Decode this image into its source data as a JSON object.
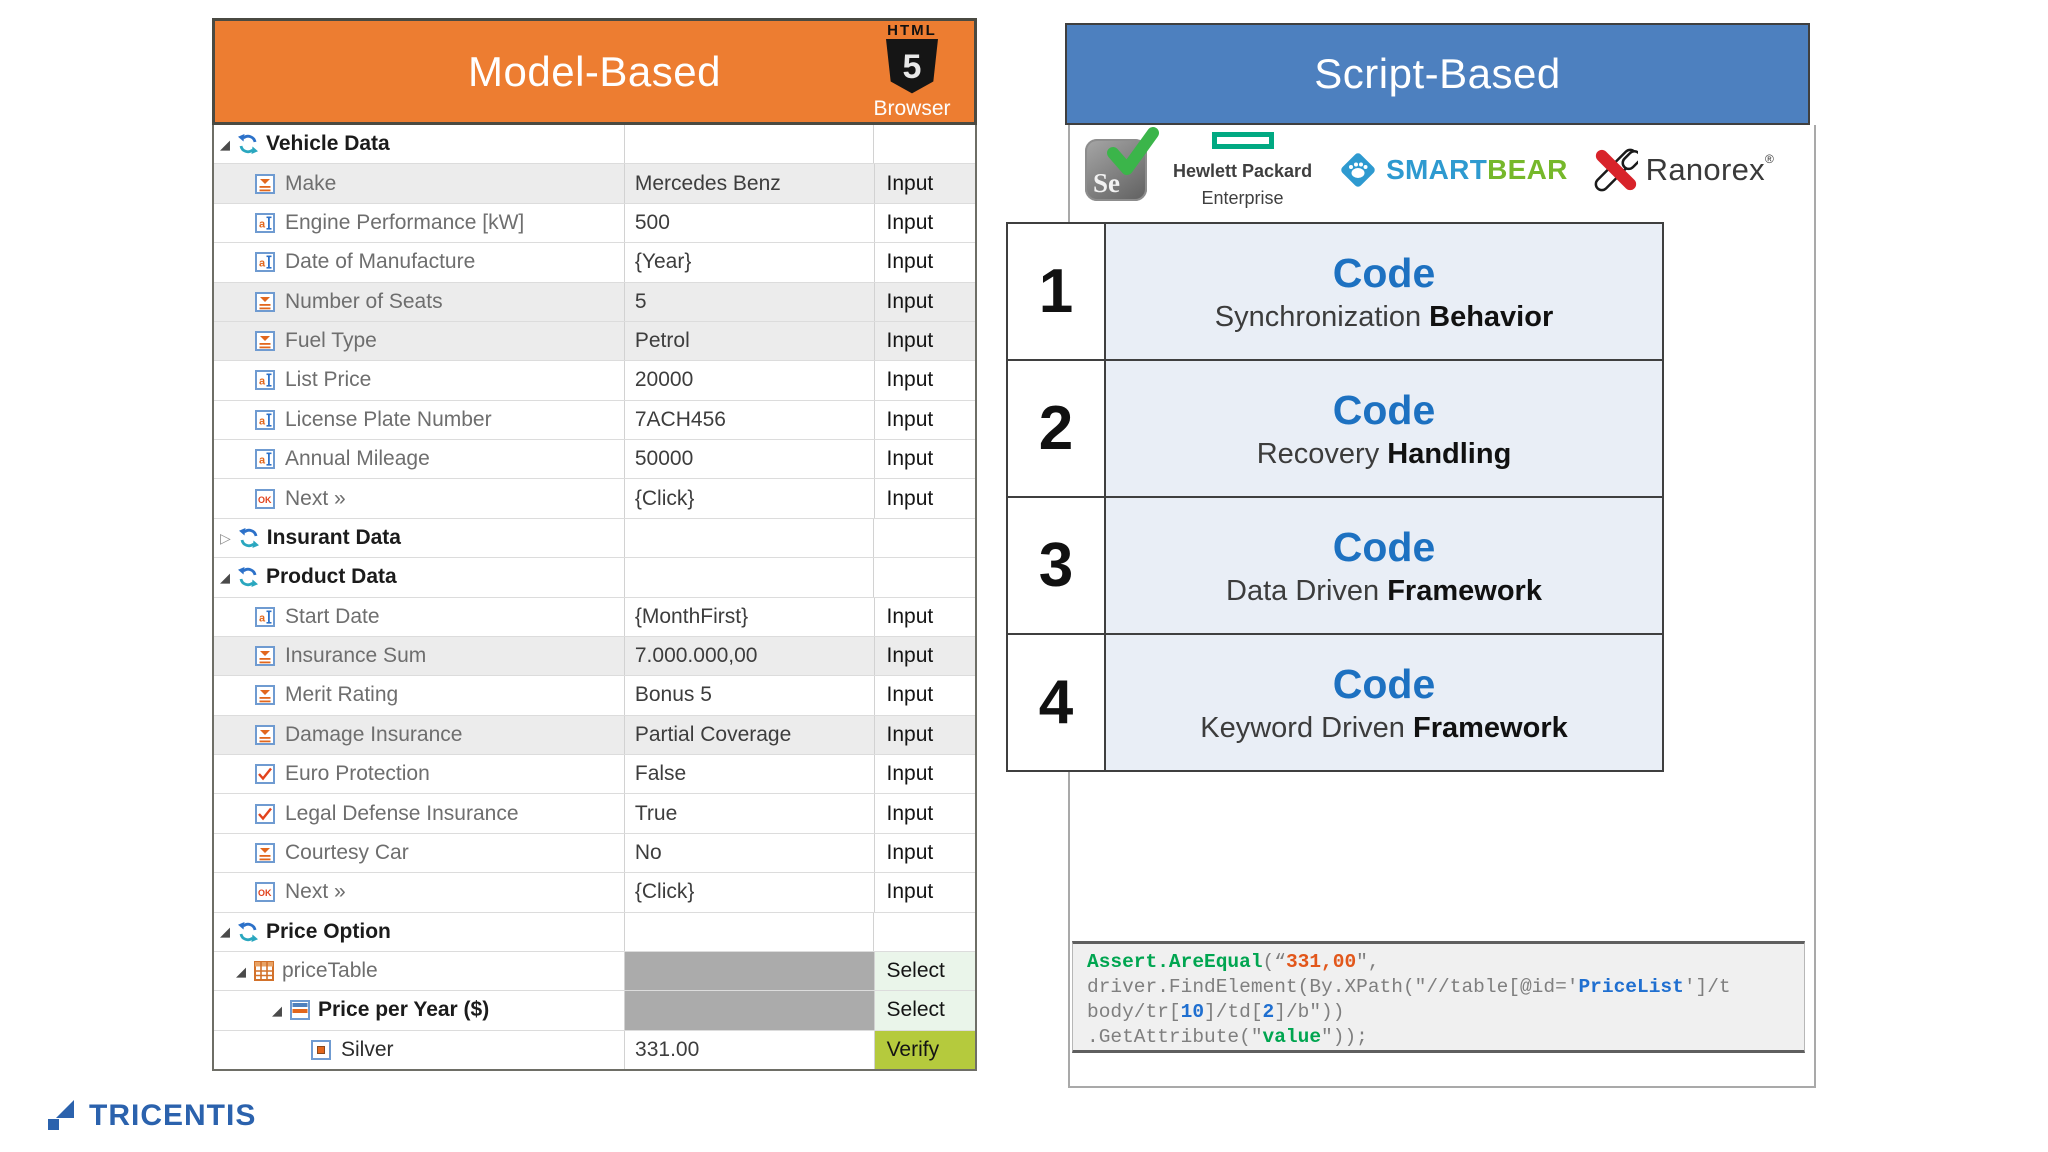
{
  "colors": {
    "accent_orange": "#ed7d31",
    "accent_blue": "#4d80bf",
    "code_blue": "#1d71c1",
    "step_bg": "#e9eef6",
    "select_green": "#eaf5ea",
    "verify_green": "#b5ca3d",
    "gray_value_cell": "#ababab",
    "code_green": "#00a550",
    "code_orange": "#e2571b",
    "code_gray": "#7f7f7f",
    "code_token_blue": "#1f6fd0",
    "tricentis_blue": "#2b62ad",
    "smartbear_blue": "#2e9ad0",
    "smartbear_green": "#76b82a",
    "ranorex_red": "#d8232a",
    "hpe_green": "#01a982",
    "selenium_check_green": "#3bb54a"
  },
  "left_panel": {
    "title": "Model-Based",
    "badge": {
      "top": "HTML",
      "number": "5",
      "bottom": "Browser"
    },
    "rows": [
      {
        "kind": "section",
        "level": 0,
        "arrow": "expanded",
        "name": "Vehicle Data",
        "value": "",
        "action": ""
      },
      {
        "kind": "dropdown",
        "level": 1,
        "arrow": null,
        "shaded": true,
        "name": "Make",
        "value": "Mercedes Benz",
        "action": "Input"
      },
      {
        "kind": "textbox",
        "level": 1,
        "arrow": null,
        "name": "Engine Performance [kW]",
        "value": "500",
        "action": "Input"
      },
      {
        "kind": "textbox",
        "level": 1,
        "arrow": null,
        "name": "Date of Manufacture",
        "value": "{Year}",
        "action": "Input"
      },
      {
        "kind": "dropdown",
        "level": 1,
        "arrow": null,
        "shaded": true,
        "name": "Number of Seats",
        "value": "5",
        "action": "Input"
      },
      {
        "kind": "dropdown",
        "level": 1,
        "arrow": null,
        "shaded": true,
        "name": "Fuel Type",
        "value": "Petrol",
        "action": "Input"
      },
      {
        "kind": "textbox",
        "level": 1,
        "arrow": null,
        "name": "List Price",
        "value": "20000",
        "action": "Input"
      },
      {
        "kind": "textbox",
        "level": 1,
        "arrow": null,
        "name": "License Plate Number",
        "value": "7ACH456",
        "action": "Input"
      },
      {
        "kind": "textbox",
        "level": 1,
        "arrow": null,
        "name": "Annual Mileage",
        "value": "50000",
        "action": "Input"
      },
      {
        "kind": "button",
        "level": 1,
        "arrow": null,
        "name": "Next »",
        "value": "{Click}",
        "action": "Input"
      },
      {
        "kind": "section",
        "level": 0,
        "arrow": "collapsed",
        "name": "Insurant Data",
        "value": "",
        "action": ""
      },
      {
        "kind": "section",
        "level": 0,
        "arrow": "expanded",
        "name": "Product Data",
        "value": "",
        "action": ""
      },
      {
        "kind": "textbox",
        "level": 1,
        "arrow": null,
        "name": "Start Date",
        "value": "{MonthFirst}",
        "action": "Input"
      },
      {
        "kind": "dropdown",
        "level": 1,
        "arrow": null,
        "shaded": true,
        "name": "Insurance Sum",
        "value": "7.000.000,00",
        "action": "Input"
      },
      {
        "kind": "dropdown",
        "level": 1,
        "arrow": null,
        "name": "Merit Rating",
        "value": "Bonus 5",
        "action": "Input"
      },
      {
        "kind": "dropdown",
        "level": 1,
        "arrow": null,
        "shaded": true,
        "name": "Damage Insurance",
        "value": "Partial Coverage",
        "action": "Input"
      },
      {
        "kind": "checkbox",
        "level": 1,
        "arrow": null,
        "name": "Euro Protection",
        "value": "False",
        "action": "Input"
      },
      {
        "kind": "checkbox",
        "level": 1,
        "arrow": null,
        "name": "Legal Defense Insurance",
        "value": "True",
        "action": "Input"
      },
      {
        "kind": "dropdown",
        "level": 1,
        "arrow": null,
        "name": "Courtesy Car",
        "value": "No",
        "action": "Input"
      },
      {
        "kind": "button",
        "level": 1,
        "arrow": null,
        "name": "Next »",
        "value": "{Click}",
        "action": "Input"
      },
      {
        "kind": "section",
        "level": 0,
        "arrow": "expanded",
        "name": "Price Option",
        "value": "",
        "action": ""
      },
      {
        "kind": "table",
        "level": 1,
        "arrow": "expanded",
        "value_shaded": true,
        "name": "priceTable",
        "value": "",
        "action": "Select"
      },
      {
        "kind": "rows",
        "level": 2,
        "arrow": "expanded",
        "value_shaded": true,
        "bold": true,
        "name": "Price per Year ($)",
        "value": "",
        "action": "Select"
      },
      {
        "kind": "cell",
        "level": 3,
        "arrow": null,
        "name": "Silver",
        "value": "331.00",
        "action": "Verify"
      }
    ]
  },
  "right_panel": {
    "title": "Script-Based",
    "logos": {
      "selenium_label": "Se",
      "hpe_line1": "Hewlett Packard",
      "hpe_line2": "Enterprise",
      "smartbear_part1": "SMART",
      "smartbear_part2": "BEAR",
      "ranorex_label": "Ranorex",
      "ranorex_reg": "®"
    },
    "steps": [
      {
        "number": "1",
        "title": "Code",
        "subtitle_normal": "Synchronization ",
        "subtitle_strong": "Behavior"
      },
      {
        "number": "2",
        "title": "Code",
        "subtitle_normal": "Recovery ",
        "subtitle_strong": "Handling"
      },
      {
        "number": "3",
        "title": "Code",
        "subtitle_normal": "Data Driven ",
        "subtitle_strong": "Framework"
      },
      {
        "number": "4",
        "title": "Code",
        "subtitle_normal": "Keyword Driven ",
        "subtitle_strong": "Framework"
      }
    ],
    "code": {
      "lines": [
        [
          {
            "t": "Assert.AreEqual",
            "c": "green"
          },
          {
            "t": "(",
            "c": "gray"
          },
          {
            "t": "“",
            "c": "gray"
          },
          {
            "t": "331,00",
            "c": "orange"
          },
          {
            "t": "\",",
            "c": "gray"
          }
        ],
        [
          {
            "t": "driver.FindElement(By.XPath(\"//table[@id='",
            "c": "gray"
          },
          {
            "t": "PriceList",
            "c": "blue"
          },
          {
            "t": "']/t",
            "c": "gray"
          }
        ],
        [
          {
            "t": "body/tr[",
            "c": "gray"
          },
          {
            "t": "10",
            "c": "blue"
          },
          {
            "t": "]/td[",
            "c": "gray"
          },
          {
            "t": "2",
            "c": "blue"
          },
          {
            "t": "]/b\"))",
            "c": "gray"
          }
        ],
        [
          {
            "t": ".GetAttribute(\"",
            "c": "gray"
          },
          {
            "t": "value",
            "c": "green"
          },
          {
            "t": "\"));",
            "c": "gray"
          }
        ]
      ]
    }
  },
  "footer": {
    "logo_text": "TRICENTIS"
  }
}
